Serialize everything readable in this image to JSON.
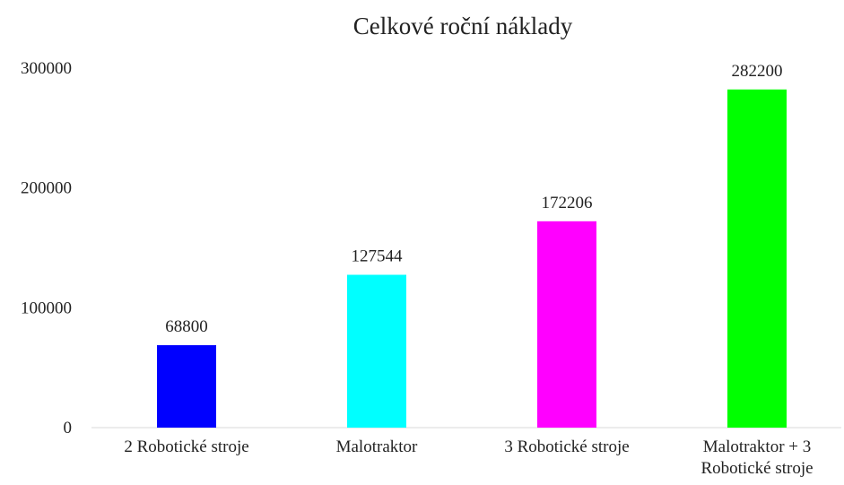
{
  "chart_data": {
    "type": "bar",
    "title": "Celkové roční náklady",
    "categories": [
      "2 Robotické stroje",
      "Malotraktor",
      "3 Robotické stroje",
      "Malotraktor + 3 Robotické stroje"
    ],
    "values": [
      68800,
      127544,
      172206,
      282200
    ],
    "colors": [
      "#0000ff",
      "#00ffff",
      "#ff00ff",
      "#00ff00"
    ],
    "ylim": [
      0,
      300000
    ],
    "yticks": [
      0,
      100000,
      200000,
      300000
    ]
  }
}
